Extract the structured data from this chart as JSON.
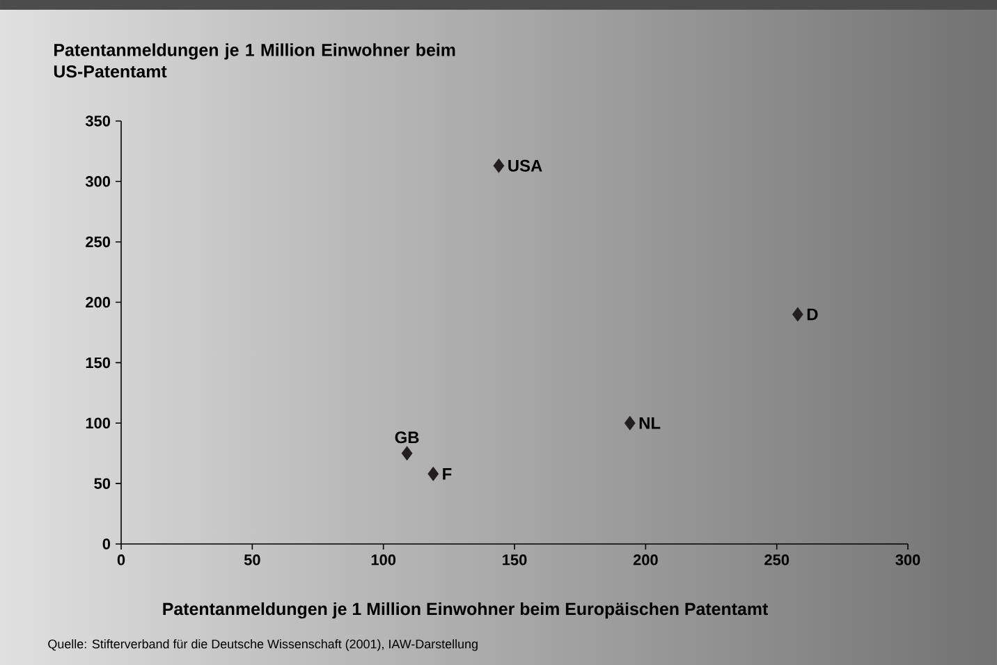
{
  "chart_data": {
    "type": "scatter",
    "xlabel": "Patentanmeldungen je 1 Million Einwohner beim Europäischen Patentamt",
    "ylabel": "Patentanmeldungen je 1 Million Einwohner beim US-Patentamt",
    "x": [
      144,
      258,
      194,
      109,
      119
    ],
    "values": [
      313,
      190,
      100,
      75,
      58
    ],
    "color": "#231f20",
    "marker": "diamond",
    "xlim": [
      0,
      300
    ],
    "xticks": [
      0,
      50,
      100,
      150,
      200,
      250,
      300
    ],
    "ylim": [
      0,
      350
    ],
    "yticks": [
      0,
      50,
      100,
      150,
      200,
      250,
      300,
      350
    ],
    "annotations": [
      {
        "text": "USA",
        "x": 144,
        "y": 313
      },
      {
        "text": "D",
        "x": 258,
        "y": 190
      },
      {
        "text": "NL",
        "x": 194,
        "y": 100
      },
      {
        "text": "GB",
        "x": 109,
        "y": 75
      },
      {
        "text": "F",
        "x": 119,
        "y": 58
      },
      "Quelle: Stifterverband für die Deutsche Wissenschaft (2001), IAW-Darstellung"
    ]
  }
}
